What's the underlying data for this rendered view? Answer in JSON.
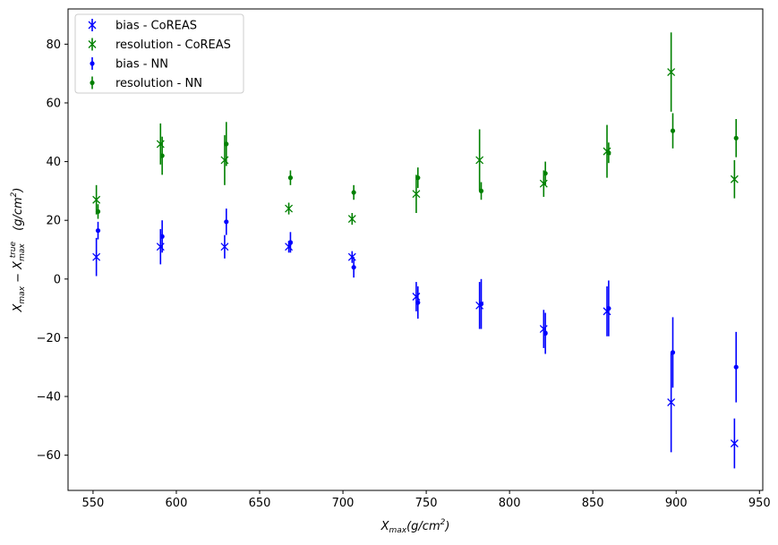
{
  "chart_data": {
    "type": "scatter",
    "title": "",
    "xlabel": {
      "base": "X",
      "sub": "max",
      "unit": "(g/cm",
      "sup": "2",
      "close": ")"
    },
    "ylabel": {
      "base1": "X",
      "sub1": "max",
      "minus": " − ",
      "base2": "X",
      "sub2": "max",
      "sup2": "true",
      "unit": "(g/cm",
      "sup": "2",
      "close": ")"
    },
    "xlim": [
      535,
      952
    ],
    "ylim": [
      -72,
      92
    ],
    "xticks": [
      550,
      600,
      650,
      700,
      750,
      800,
      850,
      900,
      950
    ],
    "yticks": [
      -60,
      -40,
      -20,
      0,
      20,
      40,
      60,
      80
    ],
    "xtick_labels": [
      "550",
      "600",
      "650",
      "700",
      "750",
      "800",
      "850",
      "900",
      "950"
    ],
    "ytick_labels": [
      "−60",
      "−40",
      "−20",
      "0",
      "20",
      "40",
      "60",
      "80"
    ],
    "legend_position": "upper-left",
    "series": [
      {
        "name": "bias - CoREAS",
        "color": "#0000ff",
        "marker": "x",
        "points": [
          {
            "x": 552.0,
            "y": 7.5,
            "err": 6.5
          },
          {
            "x": 590.5,
            "y": 11.0,
            "err": 6.0
          },
          {
            "x": 629.0,
            "y": 11.0,
            "err": 4.0
          },
          {
            "x": 667.5,
            "y": 11.0,
            "err": 2.0
          },
          {
            "x": 705.5,
            "y": 7.5,
            "err": 2.0
          },
          {
            "x": 744.0,
            "y": -6.0,
            "err": 5.0
          },
          {
            "x": 782.0,
            "y": -9.0,
            "err": 8.0
          },
          {
            "x": 820.5,
            "y": -17.0,
            "err": 6.5
          },
          {
            "x": 858.5,
            "y": -11.0,
            "err": 8.5
          },
          {
            "x": 897.0,
            "y": -42.0,
            "err": 17.0
          },
          {
            "x": 935.0,
            "y": -56.0,
            "err": 8.5
          }
        ]
      },
      {
        "name": "resolution - CoREAS",
        "color": "#008000",
        "marker": "x",
        "points": [
          {
            "x": 552.0,
            "y": 27.0,
            "err": 5.0
          },
          {
            "x": 590.5,
            "y": 46.0,
            "err": 7.0
          },
          {
            "x": 629.0,
            "y": 40.5,
            "err": 8.5
          },
          {
            "x": 667.5,
            "y": 24.0,
            "err": 2.0
          },
          {
            "x": 705.5,
            "y": 20.5,
            "err": 2.0
          },
          {
            "x": 744.0,
            "y": 29.0,
            "err": 6.5
          },
          {
            "x": 782.0,
            "y": 40.5,
            "err": 10.5
          },
          {
            "x": 820.5,
            "y": 32.5,
            "err": 4.5
          },
          {
            "x": 858.5,
            "y": 43.5,
            "err": 9.0
          },
          {
            "x": 897.0,
            "y": 70.5,
            "err": 13.5
          },
          {
            "x": 935.0,
            "y": 34.0,
            "err": 6.5
          }
        ]
      },
      {
        "name": "bias - NN",
        "color": "#0000ff",
        "marker": "dot",
        "points": [
          {
            "x": 553.0,
            "y": 16.5,
            "err": 3.0
          },
          {
            "x": 591.5,
            "y": 14.5,
            "err": 5.5
          },
          {
            "x": 630.0,
            "y": 19.5,
            "err": 4.5
          },
          {
            "x": 668.5,
            "y": 12.5,
            "err": 3.5
          },
          {
            "x": 706.5,
            "y": 4.0,
            "err": 3.5
          },
          {
            "x": 745.0,
            "y": -8.0,
            "err": 5.5
          },
          {
            "x": 783.0,
            "y": -8.5,
            "err": 8.5
          },
          {
            "x": 821.5,
            "y": -18.5,
            "err": 7.0
          },
          {
            "x": 859.5,
            "y": -10.0,
            "err": 9.5
          },
          {
            "x": 898.0,
            "y": -25.0,
            "err": 12.0
          },
          {
            "x": 936.0,
            "y": -30.0,
            "err": 12.0
          }
        ]
      },
      {
        "name": "resolution - NN",
        "color": "#008000",
        "marker": "dot",
        "points": [
          {
            "x": 553.0,
            "y": 23.0,
            "err": 2.5
          },
          {
            "x": 591.5,
            "y": 42.0,
            "err": 6.5
          },
          {
            "x": 630.0,
            "y": 46.0,
            "err": 7.5
          },
          {
            "x": 668.5,
            "y": 34.5,
            "err": 2.5
          },
          {
            "x": 706.5,
            "y": 29.5,
            "err": 2.5
          },
          {
            "x": 745.0,
            "y": 34.5,
            "err": 3.5
          },
          {
            "x": 783.0,
            "y": 30.0,
            "err": 3.0
          },
          {
            "x": 821.5,
            "y": 36.0,
            "err": 4.0
          },
          {
            "x": 859.5,
            "y": 43.0,
            "err": 3.5
          },
          {
            "x": 898.0,
            "y": 50.5,
            "err": 6.0
          },
          {
            "x": 936.0,
            "y": 48.0,
            "err": 6.5
          }
        ]
      }
    ]
  }
}
